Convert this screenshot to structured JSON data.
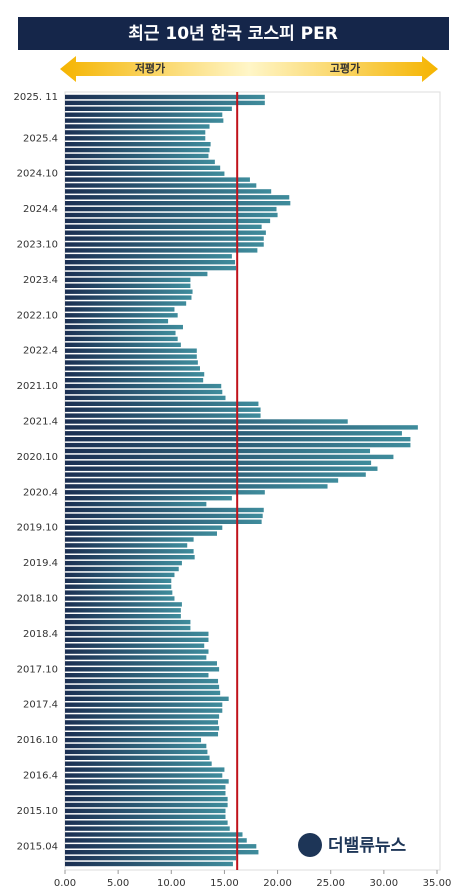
{
  "chart_data": {
    "type": "hbar",
    "title": "최근 10년 한국 코스피 PER",
    "low_label": "저평가",
    "high_label": "고평가",
    "logo": "더밸류뉴스",
    "categories": [
      "2025. 11",
      null,
      null,
      null,
      null,
      null,
      null,
      "2025.4",
      null,
      null,
      null,
      null,
      null,
      "2024.10",
      null,
      null,
      null,
      null,
      null,
      "2024.4",
      null,
      null,
      null,
      null,
      null,
      "2023.10",
      null,
      null,
      null,
      null,
      null,
      "2023.4",
      null,
      null,
      null,
      null,
      null,
      "2022.10",
      null,
      null,
      null,
      null,
      null,
      "2022.4",
      null,
      null,
      null,
      null,
      null,
      "2021.10",
      null,
      null,
      null,
      null,
      null,
      "2021.4",
      null,
      null,
      null,
      null,
      null,
      "2020.10",
      null,
      null,
      null,
      null,
      null,
      "2020.4",
      null,
      null,
      null,
      null,
      null,
      "2019.10",
      null,
      null,
      null,
      null,
      null,
      "2019.4",
      null,
      null,
      null,
      null,
      null,
      "2018.10",
      null,
      null,
      null,
      null,
      null,
      "2018.4",
      null,
      null,
      null,
      null,
      null,
      "2017.10",
      null,
      null,
      null,
      null,
      null,
      "2017.4",
      null,
      null,
      null,
      null,
      null,
      "2016.10",
      null,
      null,
      null,
      null,
      null,
      "2016.4",
      null,
      null,
      null,
      null,
      null,
      "2015.10",
      null,
      null,
      null,
      null,
      null,
      "2015.04",
      null,
      null,
      null
    ],
    "values": [
      18.8,
      18.8,
      15.7,
      14.8,
      14.9,
      13.6,
      13.2,
      13.2,
      13.7,
      13.6,
      13.5,
      14.1,
      14.6,
      15.0,
      17.4,
      18.0,
      19.4,
      21.1,
      21.2,
      19.9,
      20.0,
      19.3,
      18.5,
      18.9,
      18.7,
      18.7,
      18.1,
      15.7,
      16.0,
      16.1,
      13.4,
      11.8,
      11.8,
      12.0,
      11.9,
      11.4,
      10.3,
      10.6,
      9.7,
      11.1,
      10.4,
      10.6,
      10.9,
      12.4,
      12.4,
      12.5,
      12.7,
      13.1,
      13.0,
      14.7,
      14.8,
      15.1,
      18.2,
      18.4,
      18.4,
      26.6,
      33.2,
      31.7,
      32.5,
      32.5,
      28.7,
      30.9,
      28.8,
      29.4,
      28.3,
      25.7,
      24.7,
      18.8,
      15.7,
      13.3,
      18.7,
      18.6,
      18.5,
      14.8,
      14.3,
      12.1,
      11.5,
      12.1,
      12.2,
      11.0,
      10.7,
      10.3,
      10.0,
      10.0,
      10.1,
      10.3,
      11.0,
      10.9,
      10.9,
      11.8,
      11.8,
      13.5,
      13.5,
      13.1,
      13.5,
      13.3,
      14.3,
      14.5,
      13.5,
      14.4,
      14.5,
      14.6,
      15.4,
      14.8,
      14.8,
      14.5,
      14.4,
      14.5,
      14.4,
      12.8,
      13.3,
      13.4,
      13.6,
      13.8,
      15.0,
      14.8,
      15.4,
      15.1,
      15.1,
      15.3,
      15.3,
      15.1,
      15.1,
      15.3,
      15.5,
      16.7,
      17.1,
      18.0,
      18.2,
      16.1,
      15.8
    ],
    "xlim": [
      0,
      35
    ],
    "xticks": [
      {
        "value": 0,
        "label": "0.00"
      },
      {
        "value": 5,
        "label": "5.00"
      },
      {
        "value": 10,
        "label": "10.00"
      },
      {
        "value": 15,
        "label": "15.00"
      },
      {
        "value": 20,
        "label": "20.00"
      },
      {
        "value": 25,
        "label": "25.00"
      },
      {
        "value": 30,
        "label": "30.00"
      },
      {
        "value": 35,
        "label": "35.00"
      }
    ],
    "reference_line": 16.2,
    "reference_color": "#c0121b",
    "grid": false
  }
}
